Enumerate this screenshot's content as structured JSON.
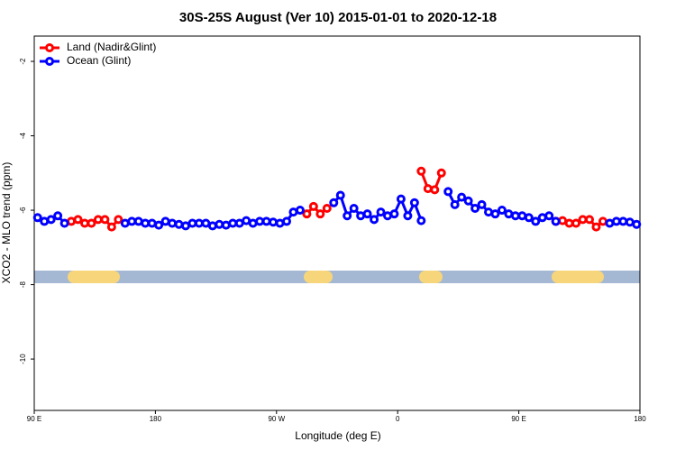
{
  "chart_data": {
    "type": "line",
    "title": "30S-25S August (Ver 10)   2015-01-01 to 2020-12-18",
    "x_label": "Longitude (deg E)",
    "y_label": "XCO2 - MLO trend (ppm)",
    "x": [
      92.5,
      97.5,
      102.5,
      107.5,
      112.5,
      117.5,
      122.5,
      127.5,
      132.5,
      137.5,
      142.5,
      147.5,
      152.5,
      157.5,
      162.5,
      167.5,
      172.5,
      177.5,
      182.5,
      187.5,
      192.5,
      197.5,
      202.5,
      207.5,
      212.5,
      217.5,
      222.5,
      227.5,
      232.5,
      237.5,
      242.5,
      247.5,
      252.5,
      257.5,
      262.5,
      267.5,
      272.5,
      277.5,
      282.5,
      287.5,
      292.5,
      297.5,
      302.5,
      307.5,
      312.5,
      317.5,
      322.5,
      327.5,
      332.5,
      337.5,
      342.5,
      347.5,
      352.5,
      357.5,
      362.5,
      367.5,
      372.5,
      377.5,
      382.5,
      387.5,
      392.5,
      397.5,
      402.5,
      407.5,
      412.5,
      417.5,
      422.5,
      427.5,
      432.5,
      437.5,
      442.5,
      447.5,
      452.5,
      457.5,
      462.5,
      467.5,
      472.5,
      477.5,
      482.5,
      487.5,
      492.5,
      497.5,
      502.5,
      507.5,
      512.5,
      517.5,
      522.5,
      527.5,
      532.5,
      537.5
    ],
    "series": [
      {
        "name": "Land (Nadir&Glint)",
        "color": "#ff0000",
        "values": [
          null,
          null,
          null,
          null,
          null,
          -6.3,
          -6.25,
          -6.35,
          -6.35,
          -6.25,
          -6.25,
          -6.45,
          -6.25,
          null,
          null,
          null,
          null,
          null,
          null,
          null,
          null,
          null,
          null,
          null,
          null,
          null,
          null,
          null,
          null,
          null,
          null,
          null,
          null,
          null,
          null,
          null,
          null,
          null,
          null,
          null,
          -6.1,
          -5.9,
          -6.1,
          -5.95,
          null,
          null,
          null,
          null,
          null,
          null,
          null,
          null,
          null,
          null,
          null,
          null,
          null,
          -4.95,
          -5.42,
          -5.45,
          -5.0,
          null,
          null,
          null,
          null,
          null,
          null,
          null,
          null,
          null,
          null,
          null,
          null,
          null,
          null,
          null,
          null,
          -6.3,
          -6.28,
          -6.35,
          -6.35,
          -6.25,
          -6.25,
          -6.45,
          -6.3,
          null,
          null,
          null,
          null,
          null
        ]
      },
      {
        "name": "Ocean (Glint)",
        "color": "#0000ff",
        "values": [
          -6.2,
          -6.3,
          -6.25,
          -6.15,
          -6.35,
          null,
          null,
          null,
          null,
          null,
          null,
          null,
          null,
          -6.35,
          -6.3,
          -6.3,
          -6.35,
          -6.35,
          -6.4,
          -6.3,
          -6.35,
          -6.38,
          -6.42,
          -6.35,
          -6.35,
          -6.35,
          -6.42,
          -6.38,
          -6.4,
          -6.35,
          -6.35,
          -6.28,
          -6.35,
          -6.3,
          -6.3,
          -6.32,
          -6.35,
          -6.3,
          -6.05,
          -6.0,
          null,
          null,
          null,
          null,
          -5.8,
          -5.6,
          -6.15,
          -5.95,
          -6.15,
          -6.1,
          -6.25,
          -6.05,
          -6.15,
          -6.1,
          -5.7,
          -6.15,
          -5.8,
          -6.28,
          null,
          null,
          null,
          -5.5,
          -5.85,
          -5.65,
          -5.75,
          -5.95,
          -5.85,
          -6.05,
          -6.1,
          -6.0,
          -6.1,
          -6.15,
          -6.15,
          -6.2,
          -6.3,
          -6.2,
          -6.15,
          -6.3,
          null,
          null,
          null,
          null,
          null,
          null,
          null,
          -6.35,
          -6.3,
          -6.3,
          -6.32,
          -6.38
        ]
      }
    ],
    "xlim": [
      90,
      540
    ],
    "xticks": [
      {
        "value": 90,
        "label": "90 E"
      },
      180,
      {
        "value": 270,
        "label": "90 W"
      },
      {
        "value": 360,
        "label": "0"
      },
      {
        "value": 450,
        "label": "90 E"
      },
      {
        "value": 540,
        "label": "180"
      }
    ],
    "ylim": [
      -11.38,
      -1.32
    ],
    "yticks": [
      -2,
      -4,
      -6,
      -8,
      -10
    ],
    "legend": "top-left"
  }
}
